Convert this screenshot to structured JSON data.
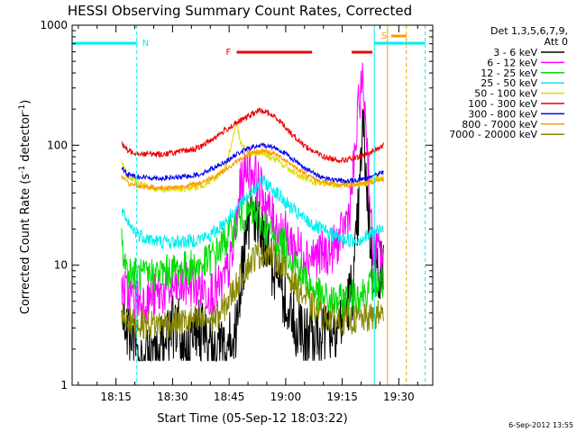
{
  "chart_data": {
    "type": "line",
    "title": "HESSI Observing Summary Count Rates, Corrected",
    "xlabel": "Start Time (05-Sep-12 18:03:22)",
    "ylabel_main": "Corrected Count Rate (s",
    "ylabel_sup1": "-1",
    "ylabel_mid": " detector",
    "ylabel_sup2": "-1",
    "ylabel_end": ")",
    "footer": "6-Sep-2012 13:55",
    "y_scale": "log",
    "ylim": [
      1,
      1000
    ],
    "xlim": [
      "18:03:22",
      "19:39:00"
    ],
    "x_ticks": [
      "18:15",
      "18:30",
      "18:45",
      "19:00",
      "19:15",
      "19:30"
    ],
    "y_ticks": [
      {
        "value": 1,
        "label": "1"
      },
      {
        "value": 10,
        "label": "10"
      },
      {
        "value": 100,
        "label": "100"
      },
      {
        "value": 1000,
        "label": "1000"
      }
    ],
    "legend_position": "right",
    "legend": {
      "header1": "Det 1,3,5,6,7,9,",
      "header2": "Att 0",
      "entries": [
        {
          "label": "3 - 6 keV",
          "color": "#000000"
        },
        {
          "label": "6 - 12 keV",
          "color": "#ff00ff"
        },
        {
          "label": "12 - 25 keV",
          "color": "#00dd00"
        },
        {
          "label": "25 - 50 keV",
          "color": "#00eeee"
        },
        {
          "label": "50 - 100 keV",
          "color": "#dddd00"
        },
        {
          "label": "100 - 300 keV",
          "color": "#ee0000"
        },
        {
          "label": "300 - 800 keV",
          "color": "#0000ee"
        },
        {
          "label": "800 - 7000 keV",
          "color": "#ff9900"
        },
        {
          "label": "7000 - 20000 keV",
          "color": "#888800"
        }
      ]
    },
    "flag_labels": {
      "N": "N",
      "F": "F",
      "S": "S"
    },
    "flags": {
      "night": [
        [
          "18:03:22",
          "18:20:30"
        ],
        [
          "19:23:30",
          "19:37:00"
        ]
      ],
      "flare": [
        [
          "18:47:00",
          "19:07:00"
        ],
        [
          "19:17:30",
          "19:23:00"
        ]
      ],
      "saa": [
        [
          "19:28:00",
          "19:32:00"
        ]
      ]
    },
    "markers": [
      {
        "time": "18:03:22",
        "color": "#00eeee",
        "style": "solid"
      },
      {
        "time": "18:20:30",
        "color": "#00eeee",
        "style": "dashed"
      },
      {
        "time": "19:23:30",
        "color": "#00eeee",
        "style": "solid"
      },
      {
        "time": "19:37:00",
        "color": "#00eeee",
        "style": "dashed"
      },
      {
        "time": "19:27:00",
        "color": "#ff9900",
        "style": "solid"
      },
      {
        "time": "19:32:00",
        "color": "#ff9900",
        "style": "dashed"
      }
    ],
    "data_start": "18:16:30",
    "data_end": "19:26:00",
    "series": [
      {
        "name": "3 - 6 keV",
        "color": "#000000",
        "noise": 0.55,
        "points": [
          [
            "18:16:30",
            5
          ],
          [
            "18:18:00",
            2.5
          ],
          [
            "18:22:00",
            1.6
          ],
          [
            "18:25:00",
            1.8
          ],
          [
            "18:28:00",
            2.2
          ],
          [
            "18:31:00",
            3.5
          ],
          [
            "18:34:00",
            2
          ],
          [
            "18:37:00",
            3
          ],
          [
            "18:40:00",
            2
          ],
          [
            "18:44:00",
            1.8
          ],
          [
            "18:47:00",
            3
          ],
          [
            "18:49:00",
            12
          ],
          [
            "18:51:00",
            30
          ],
          [
            "18:53:00",
            20
          ],
          [
            "18:55:00",
            13
          ],
          [
            "18:57:00",
            9
          ],
          [
            "18:59:00",
            6
          ],
          [
            "19:01:00",
            4
          ],
          [
            "19:03:00",
            3
          ],
          [
            "19:05:00",
            2.5
          ],
          [
            "19:08:00",
            2.6
          ],
          [
            "19:12:00",
            3
          ],
          [
            "19:15:00",
            3.5
          ],
          [
            "19:18:00",
            7
          ],
          [
            "19:19:30",
            35
          ],
          [
            "19:20:30",
            160
          ],
          [
            "19:21:30",
            45
          ],
          [
            "19:23:00",
            10
          ],
          [
            "19:26:00",
            9
          ]
        ]
      },
      {
        "name": "6 - 12 keV",
        "color": "#ff00ff",
        "noise": 0.4,
        "points": [
          [
            "18:16:30",
            7
          ],
          [
            "18:18:00",
            5.5
          ],
          [
            "18:22:00",
            5
          ],
          [
            "18:25:00",
            5.5
          ],
          [
            "18:28:00",
            6
          ],
          [
            "18:31:00",
            6.5
          ],
          [
            "18:34:00",
            7
          ],
          [
            "18:37:00",
            6.5
          ],
          [
            "18:40:00",
            6
          ],
          [
            "18:43:00",
            6.5
          ],
          [
            "18:46:00",
            12
          ],
          [
            "18:48:00",
            45
          ],
          [
            "18:50:00",
            70
          ],
          [
            "18:52:00",
            55
          ],
          [
            "18:55:00",
            32
          ],
          [
            "18:57:00",
            22
          ],
          [
            "19:00:00",
            18
          ],
          [
            "19:03:00",
            14
          ],
          [
            "19:06:00",
            12
          ],
          [
            "19:09:00",
            12
          ],
          [
            "19:12:00",
            13
          ],
          [
            "19:15:00",
            18
          ],
          [
            "19:17:00",
            30
          ],
          [
            "19:18:30",
            90
          ],
          [
            "19:19:30",
            250
          ],
          [
            "19:20:30",
            330
          ],
          [
            "19:21:30",
            120
          ],
          [
            "19:23:00",
            14
          ],
          [
            "19:26:00",
            12
          ]
        ]
      },
      {
        "name": "12 - 25 keV",
        "color": "#00dd00",
        "noise": 0.3,
        "points": [
          [
            "18:16:30",
            15
          ],
          [
            "18:18:00",
            9
          ],
          [
            "18:22:00",
            8
          ],
          [
            "18:26:00",
            8.5
          ],
          [
            "18:30:00",
            9
          ],
          [
            "18:34:00",
            9.5
          ],
          [
            "18:38:00",
            10
          ],
          [
            "18:42:00",
            13
          ],
          [
            "18:45:00",
            18
          ],
          [
            "18:48:00",
            25
          ],
          [
            "18:51:00",
            28
          ],
          [
            "18:54:00",
            22
          ],
          [
            "18:57:00",
            17
          ],
          [
            "19:00:00",
            14
          ],
          [
            "19:03:00",
            10
          ],
          [
            "19:06:00",
            7
          ],
          [
            "19:09:00",
            5.5
          ],
          [
            "19:12:00",
            5
          ],
          [
            "19:15:00",
            5
          ],
          [
            "19:18:00",
            5.5
          ],
          [
            "19:21:00",
            6
          ],
          [
            "19:23:00",
            7
          ],
          [
            "19:26:00",
            7
          ]
        ]
      },
      {
        "name": "25 - 50 keV",
        "color": "#00eeee",
        "noise": 0.12,
        "points": [
          [
            "18:16:30",
            28
          ],
          [
            "18:18:00",
            22
          ],
          [
            "18:21:00",
            18
          ],
          [
            "18:25:00",
            16
          ],
          [
            "18:30:00",
            15.5
          ],
          [
            "18:35:00",
            16
          ],
          [
            "18:40:00",
            17.5
          ],
          [
            "18:45:00",
            25
          ],
          [
            "18:48:00",
            32
          ],
          [
            "18:51:00",
            42
          ],
          [
            "18:54:00",
            50
          ],
          [
            "18:57:00",
            42
          ],
          [
            "19:00:00",
            33
          ],
          [
            "19:03:00",
            27
          ],
          [
            "19:06:00",
            23
          ],
          [
            "19:09:00",
            20
          ],
          [
            "19:12:00",
            18
          ],
          [
            "19:15:00",
            16.5
          ],
          [
            "19:18:00",
            16
          ],
          [
            "19:21:00",
            17
          ],
          [
            "19:24:00",
            19
          ],
          [
            "19:26:00",
            21
          ]
        ]
      },
      {
        "name": "50 - 100 keV",
        "color": "#dddd00",
        "noise": 0.06,
        "points": [
          [
            "18:16:30",
            75
          ],
          [
            "18:18:00",
            55
          ],
          [
            "18:22:00",
            46
          ],
          [
            "18:27:00",
            43
          ],
          [
            "18:32:00",
            43
          ],
          [
            "18:37:00",
            45
          ],
          [
            "18:41:00",
            52
          ],
          [
            "18:44:00",
            65
          ],
          [
            "18:46:00",
            110
          ],
          [
            "18:47:00",
            150
          ],
          [
            "18:48:00",
            110
          ],
          [
            "18:50:00",
            85
          ],
          [
            "18:53:00",
            88
          ],
          [
            "18:56:00",
            80
          ],
          [
            "18:59:00",
            70
          ],
          [
            "19:02:00",
            60
          ],
          [
            "19:05:00",
            52
          ],
          [
            "19:09:00",
            48
          ],
          [
            "19:13:00",
            47
          ],
          [
            "19:17:00",
            47
          ],
          [
            "19:21:00",
            48
          ],
          [
            "19:24:00",
            52
          ],
          [
            "19:26:00",
            55
          ]
        ]
      },
      {
        "name": "100 - 300 keV",
        "color": "#ee0000",
        "noise": 0.05,
        "points": [
          [
            "18:16:30",
            105
          ],
          [
            "18:18:00",
            90
          ],
          [
            "18:22:00",
            85
          ],
          [
            "18:27:00",
            84
          ],
          [
            "18:32:00",
            88
          ],
          [
            "18:37:00",
            95
          ],
          [
            "18:41:00",
            115
          ],
          [
            "18:45:00",
            140
          ],
          [
            "18:48:00",
            160
          ],
          [
            "18:51:00",
            180
          ],
          [
            "18:53:00",
            195
          ],
          [
            "18:55:00",
            188
          ],
          [
            "18:58:00",
            165
          ],
          [
            "19:01:00",
            130
          ],
          [
            "19:04:00",
            105
          ],
          [
            "19:07:00",
            90
          ],
          [
            "19:11:00",
            78
          ],
          [
            "19:15:00",
            75
          ],
          [
            "19:19:00",
            78
          ],
          [
            "19:22:00",
            85
          ],
          [
            "19:26:00",
            100
          ]
        ]
      },
      {
        "name": "300 - 800 keV",
        "color": "#0000ee",
        "noise": 0.04,
        "points": [
          [
            "18:16:30",
            65
          ],
          [
            "18:18:00",
            57
          ],
          [
            "18:22:00",
            54
          ],
          [
            "18:27:00",
            53
          ],
          [
            "18:32:00",
            54
          ],
          [
            "18:37:00",
            57
          ],
          [
            "18:41:00",
            65
          ],
          [
            "18:45:00",
            76
          ],
          [
            "18:48:00",
            88
          ],
          [
            "18:51:00",
            96
          ],
          [
            "18:54:00",
            100
          ],
          [
            "18:57:00",
            96
          ],
          [
            "19:00:00",
            85
          ],
          [
            "19:03:00",
            72
          ],
          [
            "19:06:00",
            62
          ],
          [
            "19:09:00",
            55
          ],
          [
            "19:13:00",
            51
          ],
          [
            "19:17:00",
            50
          ],
          [
            "19:21:00",
            53
          ],
          [
            "19:26:00",
            60
          ]
        ]
      },
      {
        "name": "800 - 7000 keV",
        "color": "#ff9900",
        "noise": 0.04,
        "points": [
          [
            "18:16:30",
            55
          ],
          [
            "18:18:00",
            48
          ],
          [
            "18:22:00",
            45
          ],
          [
            "18:27:00",
            44
          ],
          [
            "18:32:00",
            45
          ],
          [
            "18:37:00",
            48
          ],
          [
            "18:41:00",
            55
          ],
          [
            "18:45:00",
            65
          ],
          [
            "18:48:00",
            77
          ],
          [
            "18:51:00",
            85
          ],
          [
            "18:54:00",
            90
          ],
          [
            "18:57:00",
            85
          ],
          [
            "19:00:00",
            75
          ],
          [
            "19:03:00",
            64
          ],
          [
            "19:06:00",
            56
          ],
          [
            "19:09:00",
            50
          ],
          [
            "19:13:00",
            47
          ],
          [
            "19:17:00",
            46
          ],
          [
            "19:21:00",
            48
          ],
          [
            "19:26:00",
            52
          ]
        ]
      },
      {
        "name": "7000 - 20000 keV",
        "color": "#888800",
        "noise": 0.25,
        "points": [
          [
            "18:16:30",
            4
          ],
          [
            "18:19:00",
            3.3
          ],
          [
            "18:24:00",
            3.2
          ],
          [
            "18:29:00",
            3.3
          ],
          [
            "18:34:00",
            3.4
          ],
          [
            "18:40:00",
            3.5
          ],
          [
            "18:43:00",
            4
          ],
          [
            "18:46:00",
            6
          ],
          [
            "18:49:00",
            9
          ],
          [
            "18:52:00",
            12
          ],
          [
            "18:55:00",
            13
          ],
          [
            "18:58:00",
            11
          ],
          [
            "19:01:00",
            8
          ],
          [
            "19:04:00",
            6
          ],
          [
            "19:07:00",
            4.5
          ],
          [
            "19:10:00",
            3.8
          ],
          [
            "19:14:00",
            3.5
          ],
          [
            "19:18:00",
            3.5
          ],
          [
            "19:22:00",
            3.6
          ],
          [
            "19:26:00",
            4
          ]
        ]
      }
    ]
  }
}
